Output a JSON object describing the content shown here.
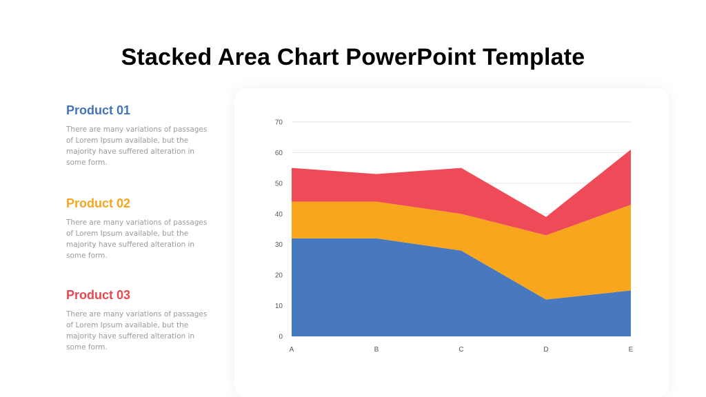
{
  "title": "Stacked Area Chart PowerPoint Template",
  "products": [
    {
      "name": "Product 01",
      "color": "#4474B8",
      "description": "There are many variations of passages of Lorem Ipsum available, but the majority have suffered alteration in some form."
    },
    {
      "name": "Product 02",
      "color": "#F6A51F",
      "description": "There are many variations of passages of Lorem Ipsum available, but the majority have suffered alteration in some form."
    },
    {
      "name": "Product 03",
      "color": "#E8464F",
      "description": "There are many variations of passages of Lorem Ipsum available, but the majority have suffered alteration in some form."
    }
  ],
  "chart_data": {
    "type": "area",
    "stacked": true,
    "categories": [
      "A",
      "B",
      "C",
      "D",
      "E"
    ],
    "series": [
      {
        "values": [
          32,
          32,
          28,
          12,
          15
        ],
        "color": "#4878BE"
      },
      {
        "values": [
          12,
          12,
          12,
          21,
          28
        ],
        "color": "#F8A61E"
      },
      {
        "values": [
          11,
          9,
          15,
          6,
          18
        ],
        "color": "#EE4A57"
      }
    ],
    "yticks": [
      0,
      10,
      20,
      30,
      40,
      50,
      60,
      70
    ],
    "ylim": [
      0,
      70
    ],
    "grid": true,
    "legend": "none"
  }
}
